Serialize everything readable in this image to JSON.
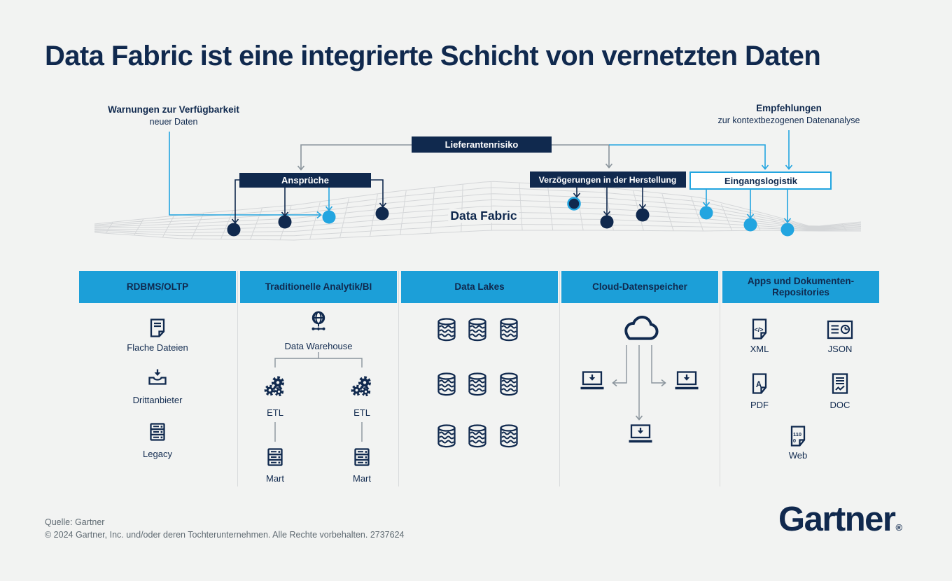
{
  "colors": {
    "bg": "#f2f3f2",
    "navy": "#10294e",
    "header_blue": "#1c9fd8",
    "light_blue": "#22a5e0",
    "line_gray": "#8a949c",
    "mesh_gray": "#d4d6d8",
    "separator": "#d9dbdc",
    "text_gray": "#5f6a72"
  },
  "title": "Data Fabric ist eine integrierte Schicht von vernetzten Daten",
  "diagram": {
    "fabric_label": "Data Fabric",
    "annotation_left_line1": "Warnungen zur Verfügbarkeit",
    "annotation_left_line2": "neuer Daten",
    "annotation_right_line1": "Empfehlungen",
    "annotation_right_line2": "zur kontextbezogenen Datenanalyse",
    "box_supplier_risk": "Lieferantenrisiko",
    "box_claims": "Ansprüche",
    "box_manufacturing_delays": "Verzögerungen in der Herstellung",
    "box_inbound_logistics": "Eingangslogistik"
  },
  "columns": [
    {
      "header": "RDBMS/OLTP",
      "items": [
        {
          "icon": "flat-file-icon",
          "label": "Flache Dateien"
        },
        {
          "icon": "third-party-inbox-icon",
          "label": "Drittanbieter"
        },
        {
          "icon": "server-rack-icon",
          "label": "Legacy"
        }
      ]
    },
    {
      "header": "Traditionelle Analytik/BI",
      "items": [
        {
          "icon": "globe-network-icon",
          "label": "Data Warehouse"
        },
        {
          "icon": "gears-icon",
          "label": "ETL"
        },
        {
          "icon": "gears-icon",
          "label": "ETL"
        },
        {
          "icon": "server-rack-icon",
          "label": "Mart"
        },
        {
          "icon": "server-rack-icon",
          "label": "Mart"
        }
      ]
    },
    {
      "header": "Data Lakes",
      "items": [
        {
          "icon": "database-cylinder-icon",
          "count": 9
        }
      ]
    },
    {
      "header": "Cloud-Datenspeicher",
      "items": [
        {
          "icon": "cloud-icon",
          "count": 1
        },
        {
          "icon": "laptop-download-icon",
          "count": 3
        }
      ]
    },
    {
      "header": "Apps und Dokumenten-Repositories",
      "items": [
        {
          "icon": "xml-file-icon",
          "label": "XML",
          "glyph": "</>"
        },
        {
          "icon": "json-report-icon",
          "label": "JSON"
        },
        {
          "icon": "pdf-file-icon",
          "label": "PDF",
          "glyph": "A"
        },
        {
          "icon": "doc-file-icon",
          "label": "DOC"
        },
        {
          "icon": "web-file-icon",
          "label": "Web",
          "glyph_line1": "110",
          "glyph_line2": "0"
        }
      ]
    }
  ],
  "footer": {
    "source": "Quelle: Gartner",
    "copyright": "© 2024 Gartner, Inc. und/oder deren Tochterunternehmen. Alle Rechte vorbehalten. 2737624"
  },
  "logo": {
    "wordmark": "Gartner",
    "registered": "®"
  }
}
